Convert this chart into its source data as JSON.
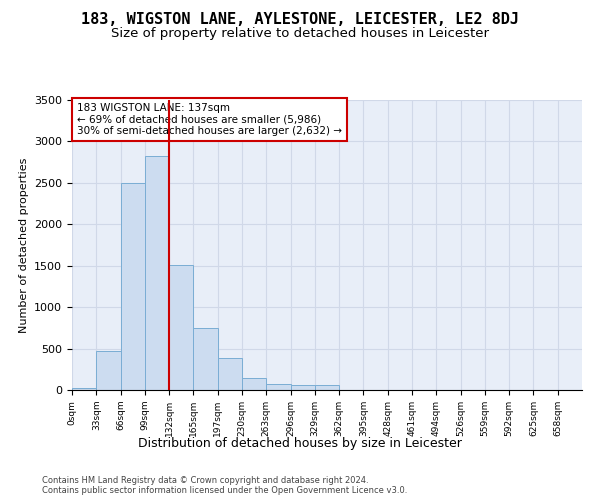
{
  "title": "183, WIGSTON LANE, AYLESTONE, LEICESTER, LE2 8DJ",
  "subtitle": "Size of property relative to detached houses in Leicester",
  "xlabel": "Distribution of detached houses by size in Leicester",
  "ylabel": "Number of detached properties",
  "bin_labels": [
    "0sqm",
    "33sqm",
    "66sqm",
    "99sqm",
    "132sqm",
    "165sqm",
    "197sqm",
    "230sqm",
    "263sqm",
    "296sqm",
    "329sqm",
    "362sqm",
    "395sqm",
    "428sqm",
    "461sqm",
    "494sqm",
    "526sqm",
    "559sqm",
    "592sqm",
    "625sqm",
    "658sqm"
  ],
  "bin_values": [
    30,
    465,
    2500,
    2820,
    1510,
    750,
    390,
    145,
    75,
    55,
    55,
    0,
    0,
    0,
    0,
    0,
    0,
    0,
    0,
    0,
    0
  ],
  "bar_color": "#ccdcf0",
  "bar_edge_color": "#7aadd4",
  "red_line_bin": 4,
  "annotation_text": "183 WIGSTON LANE: 137sqm\n← 69% of detached houses are smaller (5,986)\n30% of semi-detached houses are larger (2,632) →",
  "annotation_box_color": "#ffffff",
  "annotation_box_edge": "#cc0000",
  "red_line_color": "#cc0000",
  "grid_color": "#d0d8e8",
  "bg_color": "#e8eef8",
  "footer_line1": "Contains HM Land Registry data © Crown copyright and database right 2024.",
  "footer_line2": "Contains public sector information licensed under the Open Government Licence v3.0.",
  "ylim": [
    0,
    3500
  ],
  "title_fontsize": 11,
  "subtitle_fontsize": 9.5
}
